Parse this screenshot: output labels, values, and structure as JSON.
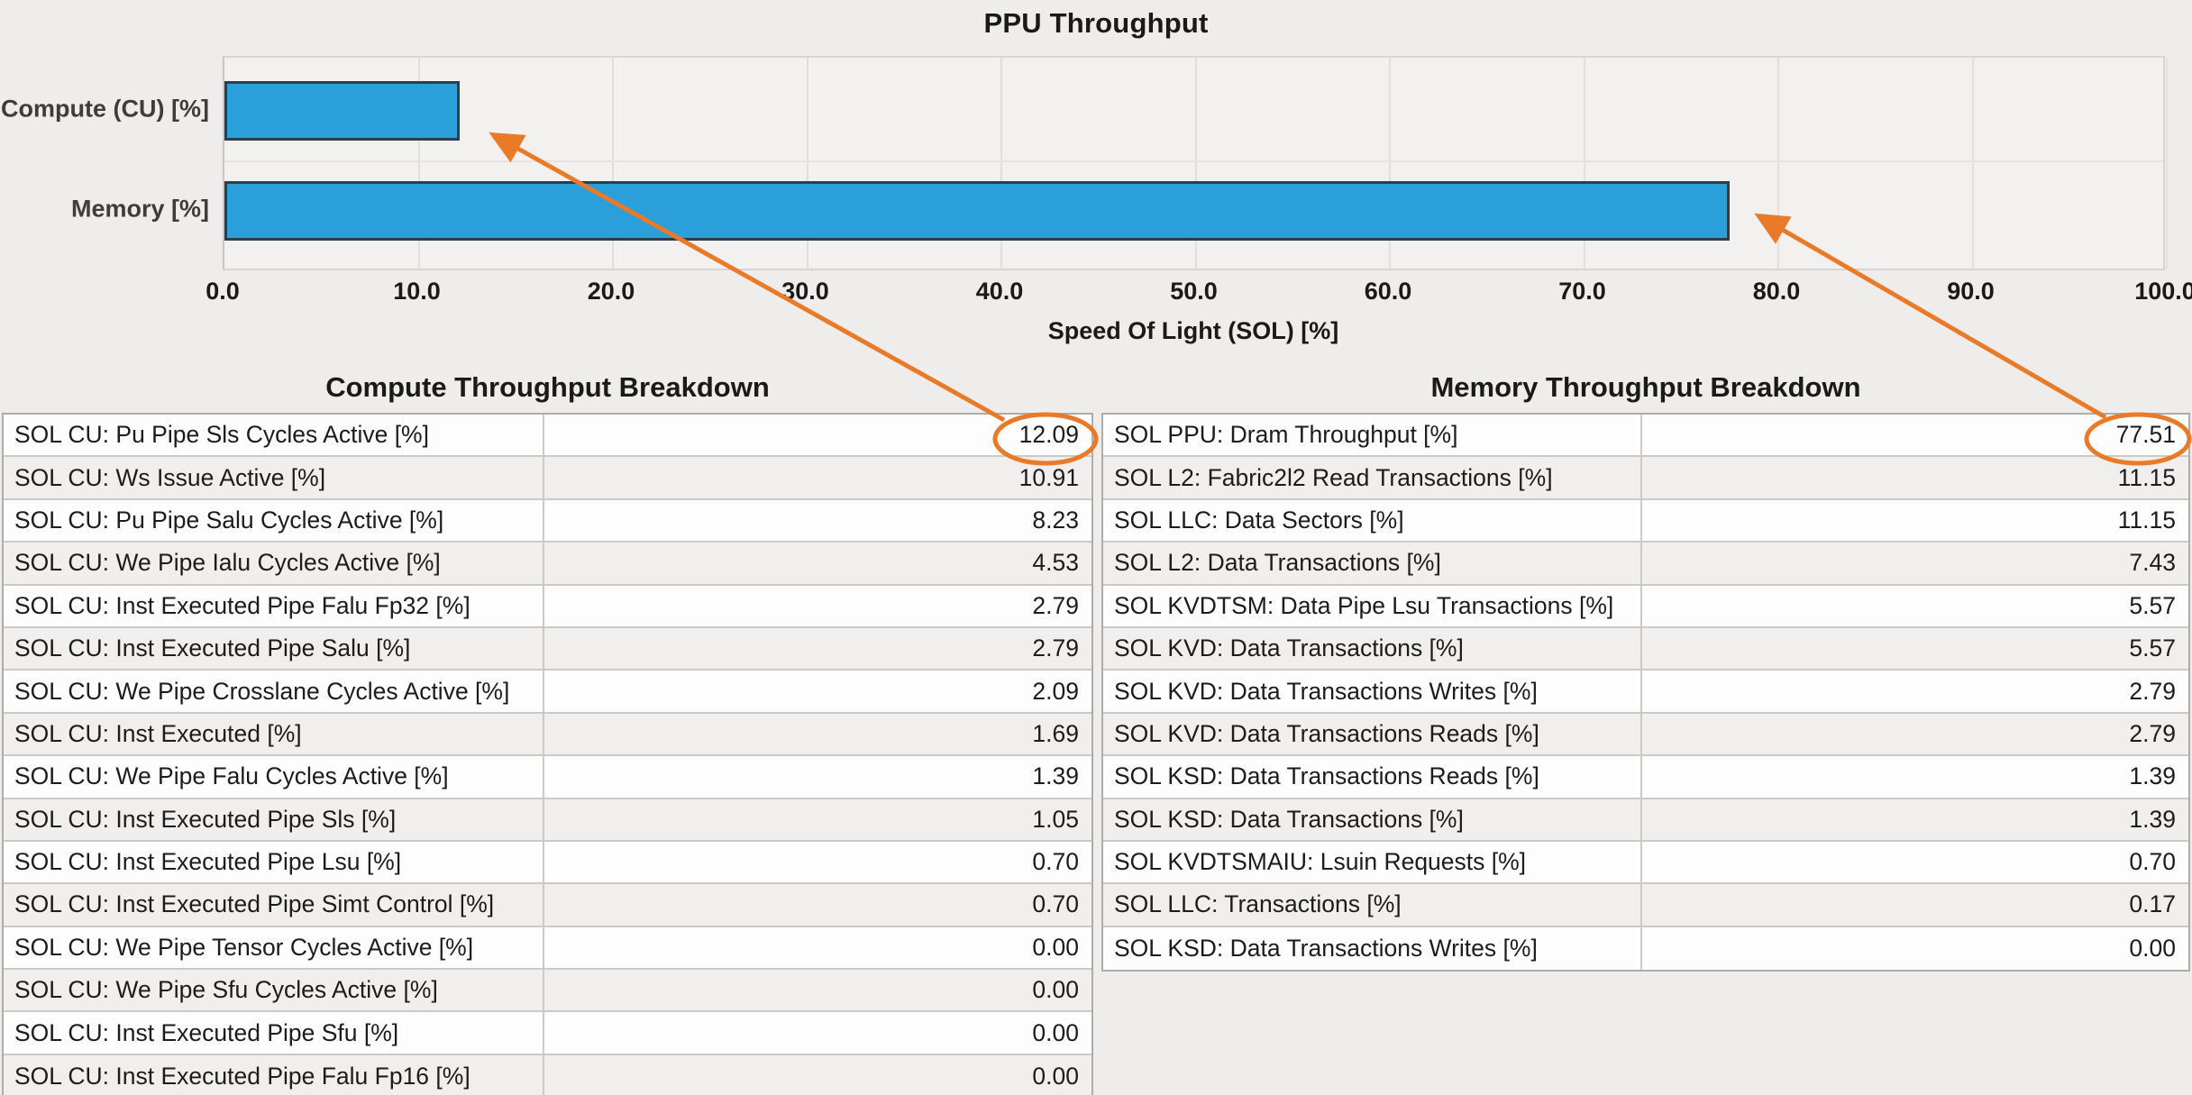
{
  "chart_data": {
    "type": "bar",
    "orientation": "horizontal",
    "title": "PPU Throughput",
    "categories": [
      "Compute (CU) [%]",
      "Memory [%]"
    ],
    "values": [
      12.09,
      77.51
    ],
    "xlabel": "Speed Of Light (SOL) [%]",
    "xlim": [
      0,
      100
    ],
    "xticks": [
      "0.0",
      "10.0",
      "20.0",
      "30.0",
      "40.0",
      "50.0",
      "60.0",
      "70.0",
      "80.0",
      "90.0",
      "100.0"
    ],
    "grid": true,
    "legend": false,
    "bar_color": "#2b9fd9"
  },
  "tables": {
    "compute": {
      "title": "Compute Throughput Breakdown",
      "rows": [
        {
          "metric": "SOL CU: Pu Pipe Sls Cycles Active [%]",
          "value": "12.09"
        },
        {
          "metric": "SOL CU: Ws Issue Active [%]",
          "value": "10.91"
        },
        {
          "metric": "SOL CU: Pu Pipe Salu Cycles Active [%]",
          "value": "8.23"
        },
        {
          "metric": "SOL CU: We Pipe Ialu Cycles Active [%]",
          "value": "4.53"
        },
        {
          "metric": "SOL CU: Inst Executed Pipe Falu Fp32 [%]",
          "value": "2.79"
        },
        {
          "metric": "SOL CU: Inst Executed Pipe Salu [%]",
          "value": "2.79"
        },
        {
          "metric": "SOL CU: We Pipe Crosslane Cycles Active [%]",
          "value": "2.09"
        },
        {
          "metric": "SOL CU: Inst Executed [%]",
          "value": "1.69"
        },
        {
          "metric": "SOL CU: We Pipe Falu Cycles Active [%]",
          "value": "1.39"
        },
        {
          "metric": "SOL CU: Inst Executed Pipe Sls [%]",
          "value": "1.05"
        },
        {
          "metric": "SOL CU: Inst Executed Pipe Lsu [%]",
          "value": "0.70"
        },
        {
          "metric": "SOL CU: Inst Executed Pipe Simt Control [%]",
          "value": "0.70"
        },
        {
          "metric": "SOL CU: We Pipe Tensor Cycles Active [%]",
          "value": "0.00"
        },
        {
          "metric": "SOL CU: We Pipe Sfu Cycles Active [%]",
          "value": "0.00"
        },
        {
          "metric": "SOL CU: Inst Executed Pipe Sfu [%]",
          "value": "0.00"
        },
        {
          "metric": "SOL CU: Inst Executed Pipe Falu Fp16 [%]",
          "value": "0.00"
        }
      ]
    },
    "memory": {
      "title": "Memory Throughput Breakdown",
      "rows": [
        {
          "metric": "SOL PPU: Dram Throughput [%]",
          "value": "77.51"
        },
        {
          "metric": "SOL L2: Fabric2l2 Read Transactions [%]",
          "value": "11.15"
        },
        {
          "metric": "SOL LLC: Data Sectors [%]",
          "value": "11.15"
        },
        {
          "metric": "SOL L2: Data Transactions [%]",
          "value": "7.43"
        },
        {
          "metric": "SOL KVDTSM: Data Pipe Lsu Transactions [%]",
          "value": "5.57"
        },
        {
          "metric": "SOL KVD: Data Transactions [%]",
          "value": "5.57"
        },
        {
          "metric": "SOL KVD: Data Transactions Writes [%]",
          "value": "2.79"
        },
        {
          "metric": "SOL KVD: Data Transactions Reads [%]",
          "value": "2.79"
        },
        {
          "metric": "SOL KSD: Data Transactions Reads [%]",
          "value": "1.39"
        },
        {
          "metric": "SOL KSD: Data Transactions [%]",
          "value": "1.39"
        },
        {
          "metric": "SOL KVDTSMAIU: Lsuin Requests [%]",
          "value": "0.70"
        },
        {
          "metric": "SOL LLC: Transactions [%]",
          "value": "0.17"
        },
        {
          "metric": "SOL KSD: Data Transactions Writes [%]",
          "value": "0.00"
        }
      ]
    }
  },
  "annotations": {
    "circled_values": [
      "12.09",
      "77.51"
    ],
    "note": "orange ellipses around top table values with arrows pointing to matching chart bars"
  },
  "colors": {
    "page_bg": "#efedeb",
    "bar_blue": "#2b9fd9",
    "bar_border": "#2c3e48",
    "annotation_orange": "#e87a28"
  }
}
